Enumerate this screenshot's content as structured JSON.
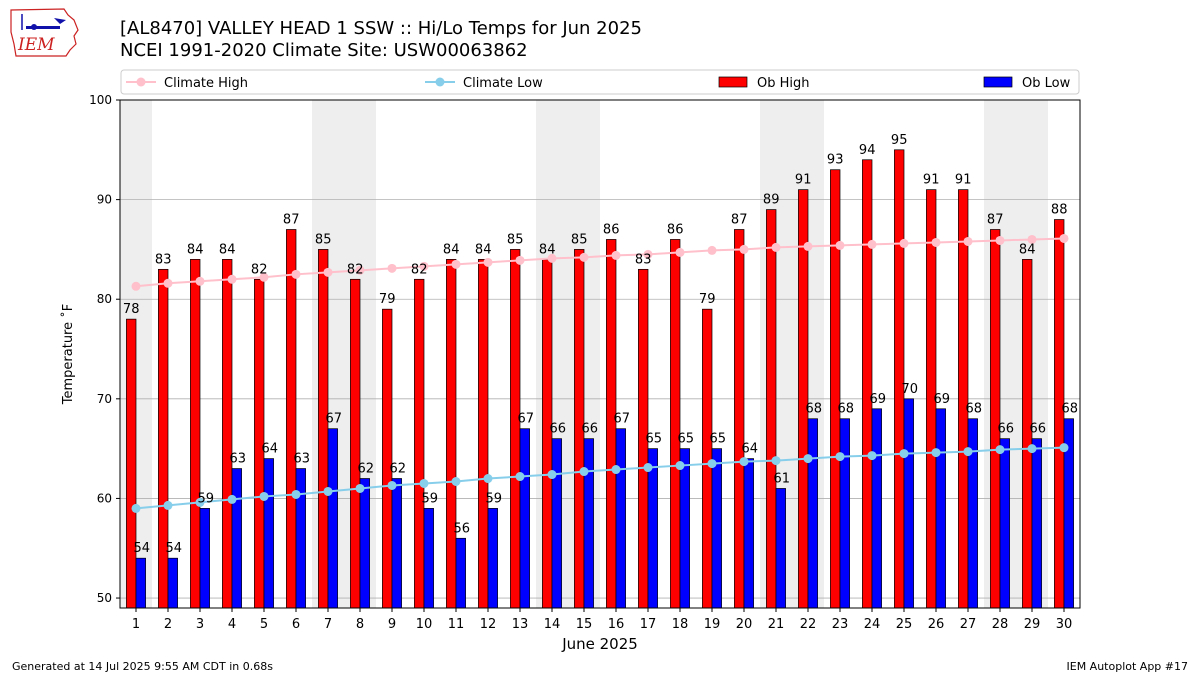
{
  "header": {
    "title_line1": "[AL8470] VALLEY HEAD 1 SSW :: Hi/Lo Temps for Jun 2025",
    "title_line2": "NCEI 1991-2020 Climate Site: USW00063862",
    "logo_text": "IEM"
  },
  "footer": {
    "generated": "Generated at 14 Jul 2025 9:55 AM CDT in 0.68s",
    "app": "IEM Autoplot App #17"
  },
  "colors": {
    "ob_high": "#ff0000",
    "ob_low": "#0000ff",
    "climate_high": "#ffc0cb",
    "climate_low": "#87ceeb",
    "weekend_shade": "#eeeeee",
    "grid": "#b0b0b0"
  },
  "chart_data": {
    "type": "bar",
    "xlabel": "June 2025",
    "ylabel": "Temperature ˚F",
    "ylim": [
      49,
      100
    ],
    "yticks": [
      50,
      60,
      70,
      80,
      90,
      100
    ],
    "grid": "horizontal",
    "legend_placement": "top",
    "legend": [
      "Climate High",
      "Climate Low",
      "Ob High",
      "Ob Low"
    ],
    "categories": [
      "1",
      "2",
      "3",
      "4",
      "5",
      "6",
      "7",
      "8",
      "9",
      "10",
      "11",
      "12",
      "13",
      "14",
      "15",
      "16",
      "17",
      "18",
      "19",
      "20",
      "21",
      "22",
      "23",
      "24",
      "25",
      "26",
      "27",
      "28",
      "29",
      "30"
    ],
    "weekend_days": [
      1,
      7,
      8,
      14,
      15,
      21,
      22,
      28,
      29
    ],
    "series": [
      {
        "name": "Ob High",
        "kind": "bar",
        "values": [
          78,
          83,
          84,
          84,
          82,
          87,
          85,
          82,
          79,
          82,
          84,
          84,
          85,
          84,
          85,
          86,
          83,
          86,
          79,
          87,
          89,
          91,
          93,
          94,
          95,
          91,
          91,
          87,
          84,
          88
        ]
      },
      {
        "name": "Ob Low",
        "kind": "bar",
        "values": [
          54,
          54,
          59,
          63,
          64,
          63,
          67,
          62,
          62,
          59,
          56,
          59,
          67,
          66,
          66,
          67,
          65,
          65,
          65,
          64,
          61,
          68,
          68,
          69,
          70,
          69,
          68,
          66,
          66,
          68
        ]
      },
      {
        "name": "Climate High",
        "kind": "line",
        "values": [
          81.3,
          81.6,
          81.8,
          82.0,
          82.2,
          82.5,
          82.7,
          82.9,
          83.1,
          83.3,
          83.5,
          83.7,
          83.9,
          84.1,
          84.2,
          84.4,
          84.5,
          84.7,
          84.9,
          85.0,
          85.2,
          85.3,
          85.4,
          85.5,
          85.6,
          85.7,
          85.8,
          85.9,
          86.0,
          86.1
        ]
      },
      {
        "name": "Climate Low",
        "kind": "line",
        "values": [
          59.0,
          59.3,
          59.6,
          59.9,
          60.2,
          60.4,
          60.7,
          61.0,
          61.3,
          61.5,
          61.7,
          62.0,
          62.2,
          62.4,
          62.7,
          62.9,
          63.1,
          63.3,
          63.5,
          63.7,
          63.8,
          64.0,
          64.2,
          64.3,
          64.5,
          64.6,
          64.7,
          64.9,
          65.0,
          65.1
        ]
      }
    ]
  }
}
